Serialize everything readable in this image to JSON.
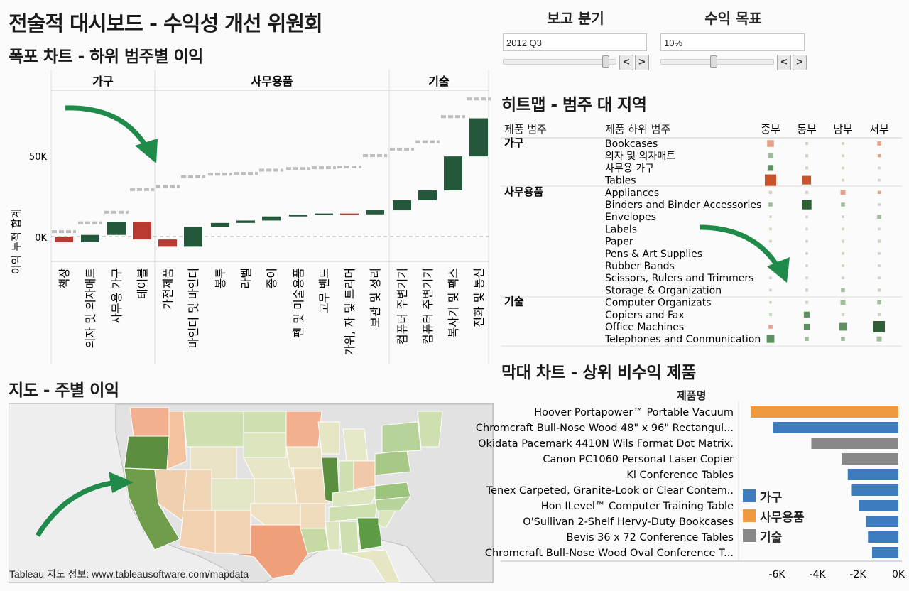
{
  "dashboard_title": "전술적 대시보드 - 수익성 개선 위원회",
  "controls": {
    "report_quarter": {
      "label": "보고 분기",
      "value": "2012 Q3",
      "prev": "<",
      "next": ">"
    },
    "profit_target": {
      "label": "수익 목표",
      "value": "10%",
      "prev": "<",
      "next": ">"
    }
  },
  "waterfall": {
    "title": "폭포 차트 - 하위 범주별 이익",
    "y_axis_label": "이익 누적 합계",
    "y_ticks": [
      "0K",
      "50K"
    ],
    "groups": [
      "가구",
      "사무용품",
      "기술"
    ]
  },
  "heatmap": {
    "title": "히트맵 - 범주 대 지역",
    "col_category": "제품 범주",
    "col_subcategory": "제품 하위 범주",
    "regions": [
      "중부",
      "동부",
      "남부",
      "서부"
    ]
  },
  "map": {
    "title": "지도 - 주별 이익",
    "attribution": "Tableau 지도 정보: www.tableausoftware.com/mapdata"
  },
  "barchart": {
    "title": "막대 차트 - 상위 비수익 제품",
    "column_header": "제품명",
    "x_ticks": [
      "-6K",
      "-4K",
      "-2K",
      "0K"
    ],
    "legend": [
      {
        "label": "가구",
        "color": "#3e7cc0"
      },
      {
        "label": "사무용품",
        "color": "#ef9a3c"
      },
      {
        "label": "기술",
        "color": "#888888"
      }
    ]
  },
  "chart_data": [
    {
      "type": "bar",
      "subtype": "waterfall",
      "ylabel": "이익 누적 합계",
      "ylim": [
        -12000,
        90000
      ],
      "categories": [
        "책장",
        "의자 및 의자매트",
        "사무용 가구",
        "테이블",
        "가전제품",
        "바인더 및 바인더",
        "봉투",
        "라벨",
        "종이",
        "펜 및 미술용품",
        "고무 밴드",
        "가위, 자 및 트리머",
        "보관 및 정리",
        "컴퓨터 주변기기",
        "컴퓨터 주변기기",
        "복사기 및 팩스",
        "전화 및 통신"
      ],
      "groups": [
        "가구",
        "가구",
        "가구",
        "가구",
        "사무용품",
        "사무용품",
        "사무용품",
        "사무용품",
        "사무용품",
        "사무용품",
        "사무용품",
        "사무용품",
        "사무용품",
        "기술",
        "기술",
        "기술",
        "기술"
      ],
      "values": [
        -3500,
        4500,
        8200,
        -11000,
        -4500,
        12200,
        2500,
        1500,
        2500,
        1100,
        700,
        -500,
        2500,
        6300,
        6000,
        21000,
        23500
      ],
      "cumulative": [
        -3500,
        1000,
        9200,
        -1800,
        -6300,
        5900,
        8400,
        9900,
        12400,
        13500,
        14200,
        13700,
        16200,
        22500,
        28500,
        49500,
        73000
      ],
      "target_marks": [
        3000,
        8500,
        15000,
        29000,
        31000,
        37000,
        38500,
        39000,
        41000,
        42000,
        42500,
        43000,
        50000,
        54000,
        58500,
        74000,
        85000
      ]
    },
    {
      "type": "heatmap",
      "x": [
        "중부",
        "동부",
        "남부",
        "서부"
      ],
      "rows": [
        {
          "category": "가구",
          "subcategory": "Bookcases",
          "values": [
            -0.5,
            0.1,
            0.05,
            -0.2
          ]
        },
        {
          "category": "가구",
          "subcategory": "의자 및 의자매트",
          "values": [
            0.3,
            0.1,
            0.05,
            -0.1
          ]
        },
        {
          "category": "가구",
          "subcategory": "사무용 가구",
          "values": [
            0.4,
            0.1,
            0.05,
            0.05
          ]
        },
        {
          "category": "가구",
          "subcategory": "Tables",
          "values": [
            -1.0,
            -0.7,
            0.05,
            0.05
          ]
        },
        {
          "category": "사무용품",
          "subcategory": "Appliances",
          "values": [
            0.1,
            0.1,
            -0.3,
            -0.1
          ]
        },
        {
          "category": "사무용품",
          "subcategory": "Binders and Binder Accessories",
          "values": [
            0.2,
            0.8,
            0.2,
            0.05
          ]
        },
        {
          "category": "사무용품",
          "subcategory": "Envelopes",
          "values": [
            0.05,
            0.05,
            0.05,
            0.2
          ]
        },
        {
          "category": "사무용품",
          "subcategory": "Labels",
          "values": [
            0.05,
            0.05,
            0.05,
            0.05
          ]
        },
        {
          "category": "사무용품",
          "subcategory": "Paper",
          "values": [
            0.05,
            0.05,
            0.1,
            0.1
          ]
        },
        {
          "category": "사무용품",
          "subcategory": "Pens & Art Supplies",
          "values": [
            0.05,
            0.05,
            0.05,
            0.05
          ]
        },
        {
          "category": "사무용품",
          "subcategory": "Rubber Bands",
          "values": [
            0.05,
            0.05,
            0.05,
            0.05
          ]
        },
        {
          "category": "사무용품",
          "subcategory": "Scissors, Rulers and Trimmers",
          "values": [
            0.05,
            0.05,
            0.05,
            0.05
          ]
        },
        {
          "category": "사무용품",
          "subcategory": "Storage & Organization",
          "values": [
            0.05,
            0.1,
            0.2,
            0.1
          ]
        },
        {
          "category": "기술",
          "subcategory": "Computer Organizats",
          "values": [
            0.05,
            0.1,
            0.3,
            0.2
          ]
        },
        {
          "category": "기술",
          "subcategory": "Copiers and Fax",
          "values": [
            0.1,
            0.4,
            0.1,
            0.1
          ]
        },
        {
          "category": "기술",
          "subcategory": "Office Machines",
          "values": [
            -0.2,
            0.4,
            0.6,
            1.0
          ]
        },
        {
          "category": "기술",
          "subcategory": "Telephones and Conmunication",
          "values": [
            0.6,
            0.2,
            0.2,
            0.3
          ]
        }
      ]
    },
    {
      "type": "bar",
      "orientation": "horizontal",
      "xlim": [
        -7500,
        0
      ],
      "categories": [
        "Hoover Portapower™ Portable Vacuum",
        "Chromcraft Bull-Nose Wood 48\" x 96\" Rectangul...",
        "Okidata Pacemark 4410N Wils Format Dot Matrix.",
        "Canon PC1060 Personal Laser Copier",
        "Kl Conference Tables",
        "Tenex Carpeted, Granite-Look or Clear Contem..",
        "Hon ILevel™ Computer Training Table",
        "O'Sullivan 2-Shelf Hervy-Duty Bookcases",
        "Bevis 36 x 72 Conference Tables",
        "Chromcraft Bull-Nose Wood Oval Conference T..."
      ],
      "values": [
        -7300,
        -6200,
        -4300,
        -2800,
        -2500,
        -2300,
        -1950,
        -1600,
        -1500,
        -1300
      ],
      "groups": [
        "사무용품",
        "가구",
        "기술",
        "기술",
        "가구",
        "가구",
        "가구",
        "가구",
        "가구",
        "가구"
      ]
    }
  ]
}
